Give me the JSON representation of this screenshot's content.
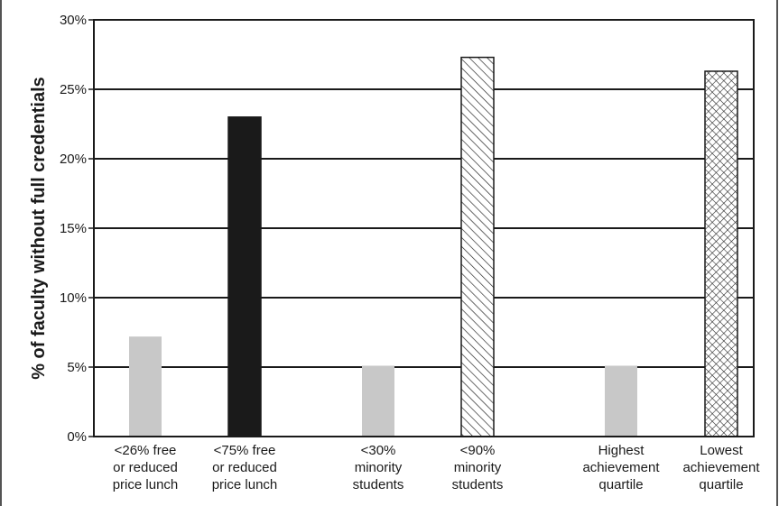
{
  "chart_data": {
    "type": "bar",
    "title": "",
    "xlabel": "",
    "ylabel": "% of faculty without full credentials",
    "ylim": [
      0,
      30
    ],
    "y_ticks": [
      0,
      5,
      10,
      15,
      20,
      25,
      30
    ],
    "y_tick_labels": [
      "0%",
      "5%",
      "10%",
      "15%",
      "20%",
      "25%",
      "30%"
    ],
    "grid": true,
    "categories": [
      [
        "<26% free",
        "or reduced",
        "price lunch"
      ],
      [
        "<75% free",
        "or reduced",
        "price lunch"
      ],
      [
        "<30%",
        "minority",
        "students"
      ],
      [
        "<90%",
        "minority",
        "students"
      ],
      [
        "Highest",
        "achievement",
        "quartile"
      ],
      [
        "Lowest",
        "achievement",
        "quartile"
      ]
    ],
    "values": [
      7.2,
      23.0,
      5.1,
      27.3,
      5.1,
      26.3
    ],
    "bar_styles": [
      "light-gray",
      "solid-black",
      "light-gray",
      "diagonal-hatch",
      "light-gray",
      "crosshatch"
    ],
    "colors": {
      "light_gray": "#c8c8c8",
      "black": "#1a1a1a",
      "pattern_fill": "#ffffff"
    }
  }
}
